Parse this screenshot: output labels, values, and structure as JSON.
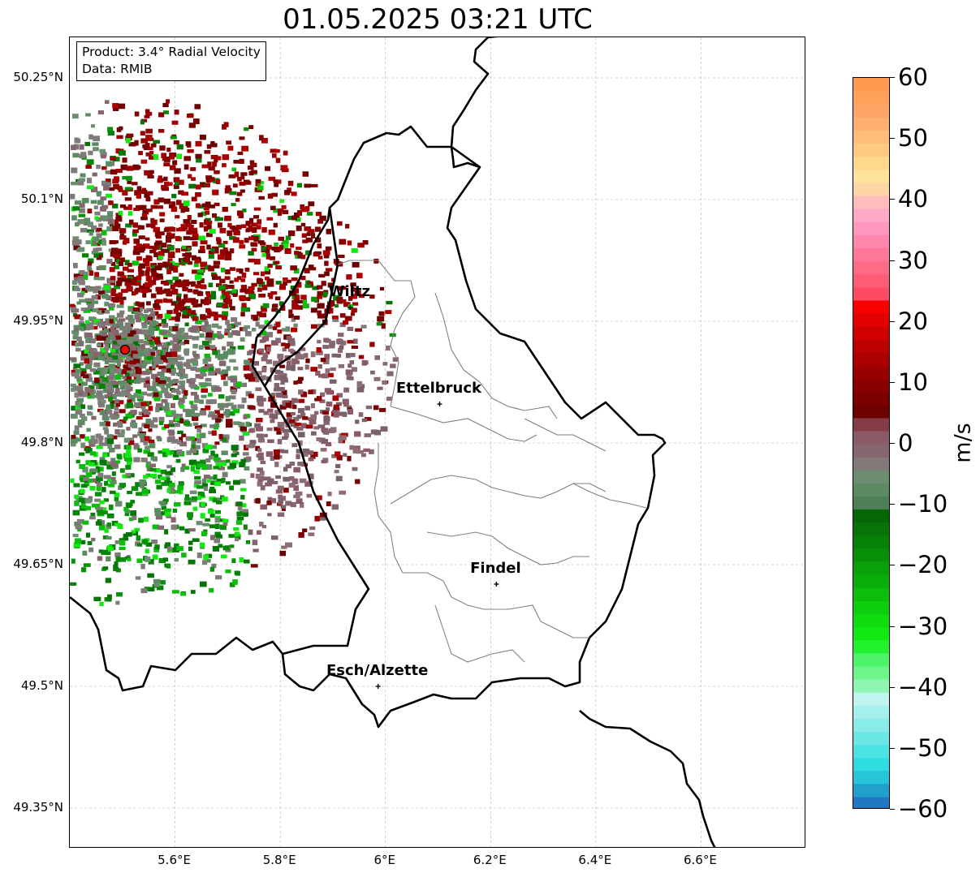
{
  "title": "01.05.2025 03:21 UTC",
  "info": {
    "product": "Product: 3.4° Radial Velocity",
    "data": "Data: RMIB"
  },
  "map": {
    "lon_range": [
      5.4,
      6.8
    ],
    "lat_range": [
      49.3,
      50.3
    ],
    "x_ticks": [
      {
        "lon": 5.6,
        "label": "5.6°E"
      },
      {
        "lon": 5.8,
        "label": "5.8°E"
      },
      {
        "lon": 6.0,
        "label": "6°E"
      },
      {
        "lon": 6.2,
        "label": "6.2°E"
      },
      {
        "lon": 6.4,
        "label": "6.4°E"
      },
      {
        "lon": 6.6,
        "label": "6.6°E"
      }
    ],
    "y_ticks": [
      {
        "lat": 50.25,
        "label": "50.25°N"
      },
      {
        "lat": 50.1,
        "label": "50.1°N"
      },
      {
        "lat": 49.95,
        "label": "49.95°N"
      },
      {
        "lat": 49.8,
        "label": "49.8°N"
      },
      {
        "lat": 49.65,
        "label": "49.65°N"
      },
      {
        "lat": 49.5,
        "label": "49.5°N"
      },
      {
        "lat": 49.35,
        "label": "49.35°N"
      }
    ],
    "radar_site": {
      "lon": 5.505,
      "lat": 49.915,
      "color": "#ff0000"
    },
    "cities": [
      {
        "name": "Wiltz",
        "lon": 5.933,
        "lat": 49.967
      },
      {
        "name": "Ettelbruck",
        "lon": 6.103,
        "lat": 49.848
      },
      {
        "name": "Findel",
        "lon": 6.211,
        "lat": 49.626
      },
      {
        "name": "Esch/Alzette",
        "lon": 5.986,
        "lat": 49.5
      }
    ],
    "border_color": "#000000",
    "canton_color": "#808080"
  },
  "colorbar": {
    "label": "m/s",
    "min": -60,
    "max": 60,
    "ticks": [
      {
        "value": 60,
        "label": "60"
      },
      {
        "value": 50,
        "label": "50"
      },
      {
        "value": 40,
        "label": "40"
      },
      {
        "value": 30,
        "label": "30"
      },
      {
        "value": 20,
        "label": "20"
      },
      {
        "value": 10,
        "label": "10"
      },
      {
        "value": 0,
        "label": "0"
      },
      {
        "value": -10,
        "label": "−10"
      },
      {
        "value": -20,
        "label": "−20"
      },
      {
        "value": -30,
        "label": "−30"
      },
      {
        "value": -40,
        "label": "−40"
      },
      {
        "value": -50,
        "label": "−50"
      },
      {
        "value": -60,
        "label": "−60"
      }
    ],
    "colors_bottom_to_top": [
      "#1f78c1",
      "#21a0cc",
      "#28c4d8",
      "#2fdde0",
      "#4ee3e3",
      "#6be8e6",
      "#88ece9",
      "#a4f0ec",
      "#bff4f0",
      "#8ff5b0",
      "#6ef58c",
      "#4df46a",
      "#22f22e",
      "#12e812",
      "#0fdc0f",
      "#0ecd0e",
      "#0cbd0c",
      "#0aae0a",
      "#09a009",
      "#089108",
      "#078207",
      "#067406",
      "#056605",
      "#4e7f56",
      "#5b8a63",
      "#6b8d70",
      "#827a79",
      "#85666e",
      "#8a5a66",
      "#843c49",
      "#6d0000",
      "#7c0000",
      "#8a0000",
      "#9a0000",
      "#ab0000",
      "#bd0000",
      "#d00000",
      "#e40000",
      "#f60000",
      "#ff4a64",
      "#ff5c76",
      "#ff6a86",
      "#ff7799",
      "#ff87ab",
      "#ff97bf",
      "#ffa9c8",
      "#ffbcbc",
      "#ffd4a6",
      "#ffe39a",
      "#ffd88c",
      "#ffca80",
      "#ffbd78",
      "#ffb070",
      "#ffa467",
      "#ffa15b",
      "#ff9a50"
    ]
  }
}
